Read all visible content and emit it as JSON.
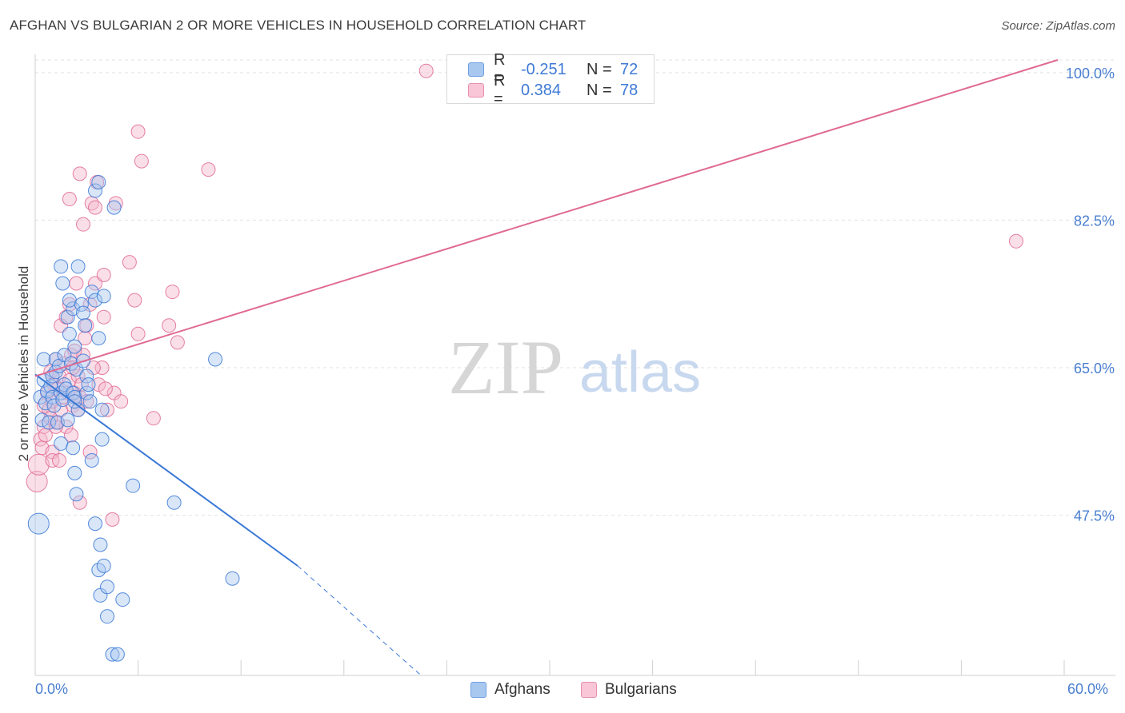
{
  "title": "AFGHAN VS BULGARIAN 2 OR MORE VEHICLES IN HOUSEHOLD CORRELATION CHART",
  "source": "Source: ZipAtlas.com",
  "watermark": {
    "zip": "ZIP",
    "atlas": "atlas"
  },
  "legend": [
    {
      "r_label": "R =",
      "r_value": "-0.251",
      "n_label": "N =",
      "n_value": "72"
    },
    {
      "r_label": "R =",
      "r_value": "0.384",
      "n_label": "N =",
      "n_value": "78"
    }
  ],
  "bottom_legend": {
    "afghans": "Afghans",
    "bulgarians": "Bulgarians"
  },
  "colors": {
    "blue_fill": "#a8c8f0",
    "blue_line": "#3a78d6",
    "pink_fill": "#f5b8cb",
    "pink_line": "#e06a94",
    "tick_text": "#4a7fd0"
  },
  "chart_data": {
    "type": "scatter",
    "title": "AFGHAN VS BULGARIAN 2 OR MORE VEHICLES IN HOUSEHOLD CORRELATION CHART",
    "xlabel": "",
    "ylabel": "2 or more Vehicles in Household",
    "xlim": [
      0,
      60
    ],
    "ylim": [
      28.5,
      101.5
    ],
    "x_tick_labels": [
      "0.0%",
      "60.0%"
    ],
    "y_ticks": [
      {
        "value": 47.5,
        "label": "47.5%"
      },
      {
        "value": 65.0,
        "label": "65.0%"
      },
      {
        "value": 82.5,
        "label": "82.5%"
      },
      {
        "value": 100.0,
        "label": "100.0%"
      }
    ],
    "series": [
      {
        "name": "Afghans",
        "r": -0.251,
        "n": 72,
        "trend": {
          "x0": 0,
          "y0": 64.2,
          "x1_solid": 15.3,
          "y1_solid": 41.5,
          "x1_dashed": 22.5,
          "y1_dashed": 28.5
        },
        "points": [
          [
            0.2,
            46.5
          ],
          [
            0.3,
            61.5
          ],
          [
            0.4,
            58.8
          ],
          [
            0.5,
            63.5
          ],
          [
            0.5,
            66.0
          ],
          [
            0.6,
            60.8
          ],
          [
            0.7,
            62.2
          ],
          [
            0.8,
            58.5
          ],
          [
            0.9,
            62.8
          ],
          [
            1.0,
            61.5
          ],
          [
            1.0,
            64.0
          ],
          [
            1.1,
            60.5
          ],
          [
            1.2,
            66.0
          ],
          [
            1.2,
            64.5
          ],
          [
            1.3,
            58.5
          ],
          [
            1.4,
            65.2
          ],
          [
            1.5,
            62.0
          ],
          [
            1.5,
            56.0
          ],
          [
            1.6,
            61.2
          ],
          [
            1.7,
            63.0
          ],
          [
            1.7,
            66.5
          ],
          [
            1.8,
            62.5
          ],
          [
            1.9,
            58.8
          ],
          [
            2.0,
            69.0
          ],
          [
            2.1,
            65.5
          ],
          [
            2.2,
            62.0
          ],
          [
            2.3,
            61.5
          ],
          [
            2.3,
            67.5
          ],
          [
            2.4,
            64.8
          ],
          [
            2.5,
            60.0
          ],
          [
            1.5,
            77.0
          ],
          [
            1.6,
            75.0
          ],
          [
            1.9,
            71.0
          ],
          [
            2.2,
            72.0
          ],
          [
            2.3,
            61.0
          ],
          [
            2.2,
            55.5
          ],
          [
            2.3,
            52.5
          ],
          [
            2.4,
            50.0
          ],
          [
            2.0,
            73.0
          ],
          [
            2.5,
            77.0
          ],
          [
            2.7,
            72.5
          ],
          [
            2.8,
            65.8
          ],
          [
            2.8,
            71.5
          ],
          [
            2.9,
            70.0
          ],
          [
            3.0,
            62.0
          ],
          [
            3.2,
            61.0
          ],
          [
            3.0,
            64.0
          ],
          [
            3.1,
            63.0
          ],
          [
            3.3,
            54.0
          ],
          [
            3.3,
            74.0
          ],
          [
            3.5,
            46.5
          ],
          [
            3.5,
            73.0
          ],
          [
            3.5,
            86.0
          ],
          [
            3.7,
            87.0
          ],
          [
            3.7,
            68.5
          ],
          [
            3.8,
            44.0
          ],
          [
            3.9,
            60.0
          ],
          [
            3.9,
            56.5
          ],
          [
            4.0,
            73.5
          ],
          [
            3.7,
            41.0
          ],
          [
            3.8,
            38.0
          ],
          [
            4.2,
            35.5
          ],
          [
            4.2,
            39.0
          ],
          [
            4.0,
            41.5
          ],
          [
            4.6,
            84.0
          ],
          [
            4.5,
            31.0
          ],
          [
            4.8,
            31.0
          ],
          [
            5.1,
            37.5
          ],
          [
            5.7,
            51.0
          ],
          [
            8.1,
            49.0
          ],
          [
            10.5,
            66.0
          ],
          [
            11.5,
            40.0
          ]
        ]
      },
      {
        "name": "Bulgarians",
        "r": 0.384,
        "n": 78,
        "trend": {
          "x0": 0,
          "y0": 64.0,
          "x1": 60,
          "y1": 101.5
        },
        "points": [
          [
            0.1,
            51.5
          ],
          [
            0.2,
            53.5
          ],
          [
            0.3,
            56.5
          ],
          [
            0.4,
            55.5
          ],
          [
            0.5,
            58.0
          ],
          [
            0.5,
            60.5
          ],
          [
            0.6,
            57.0
          ],
          [
            0.7,
            62.0
          ],
          [
            0.8,
            60.0
          ],
          [
            0.9,
            64.5
          ],
          [
            1.0,
            55.0
          ],
          [
            1.0,
            61.0
          ],
          [
            1.1,
            63.0
          ],
          [
            1.2,
            58.5
          ],
          [
            1.2,
            66.0
          ],
          [
            1.3,
            62.5
          ],
          [
            1.4,
            64.0
          ],
          [
            1.5,
            60.0
          ],
          [
            1.6,
            61.5
          ],
          [
            1.7,
            65.5
          ],
          [
            1.8,
            58.0
          ],
          [
            1.9,
            62.0
          ],
          [
            2.0,
            63.5
          ],
          [
            2.1,
            66.5
          ],
          [
            2.2,
            60.5
          ],
          [
            2.3,
            62.0
          ],
          [
            2.5,
            64.0
          ],
          [
            2.6,
            61.5
          ],
          [
            2.7,
            63.0
          ],
          [
            2.8,
            66.5
          ],
          [
            1.0,
            54.0
          ],
          [
            1.2,
            58.0
          ],
          [
            1.5,
            70.0
          ],
          [
            1.8,
            71.0
          ],
          [
            2.0,
            72.5
          ],
          [
            2.0,
            85.0
          ],
          [
            2.2,
            65.0
          ],
          [
            2.4,
            75.0
          ],
          [
            2.5,
            60.0
          ],
          [
            2.6,
            49.0
          ],
          [
            2.6,
            88.0
          ],
          [
            2.8,
            82.0
          ],
          [
            2.9,
            68.5
          ],
          [
            3.0,
            70.0
          ],
          [
            3.0,
            61.0
          ],
          [
            3.2,
            72.5
          ],
          [
            3.2,
            55.0
          ],
          [
            3.3,
            84.5
          ],
          [
            3.5,
            75.0
          ],
          [
            3.5,
            84.0
          ],
          [
            3.6,
            87.0
          ],
          [
            3.7,
            63.0
          ],
          [
            3.9,
            65.0
          ],
          [
            4.0,
            76.0
          ],
          [
            4.0,
            71.0
          ],
          [
            4.2,
            60.0
          ],
          [
            4.5,
            47.0
          ],
          [
            4.6,
            62.0
          ],
          [
            4.7,
            84.5
          ],
          [
            5.0,
            61.0
          ],
          [
            5.5,
            77.5
          ],
          [
            5.8,
            73.0
          ],
          [
            6.0,
            69.0
          ],
          [
            6.2,
            89.5
          ],
          [
            6.0,
            93.0
          ],
          [
            6.9,
            59.0
          ],
          [
            7.8,
            70.0
          ],
          [
            8.0,
            74.0
          ],
          [
            8.3,
            68.0
          ],
          [
            10.1,
            88.5
          ],
          [
            22.8,
            100.2
          ],
          [
            57.2,
            80.0
          ],
          [
            1.4,
            54.0
          ],
          [
            0.9,
            59.0
          ],
          [
            2.1,
            57.0
          ],
          [
            3.4,
            65.0
          ],
          [
            4.1,
            62.5
          ],
          [
            2.3,
            67.0
          ]
        ]
      }
    ]
  }
}
